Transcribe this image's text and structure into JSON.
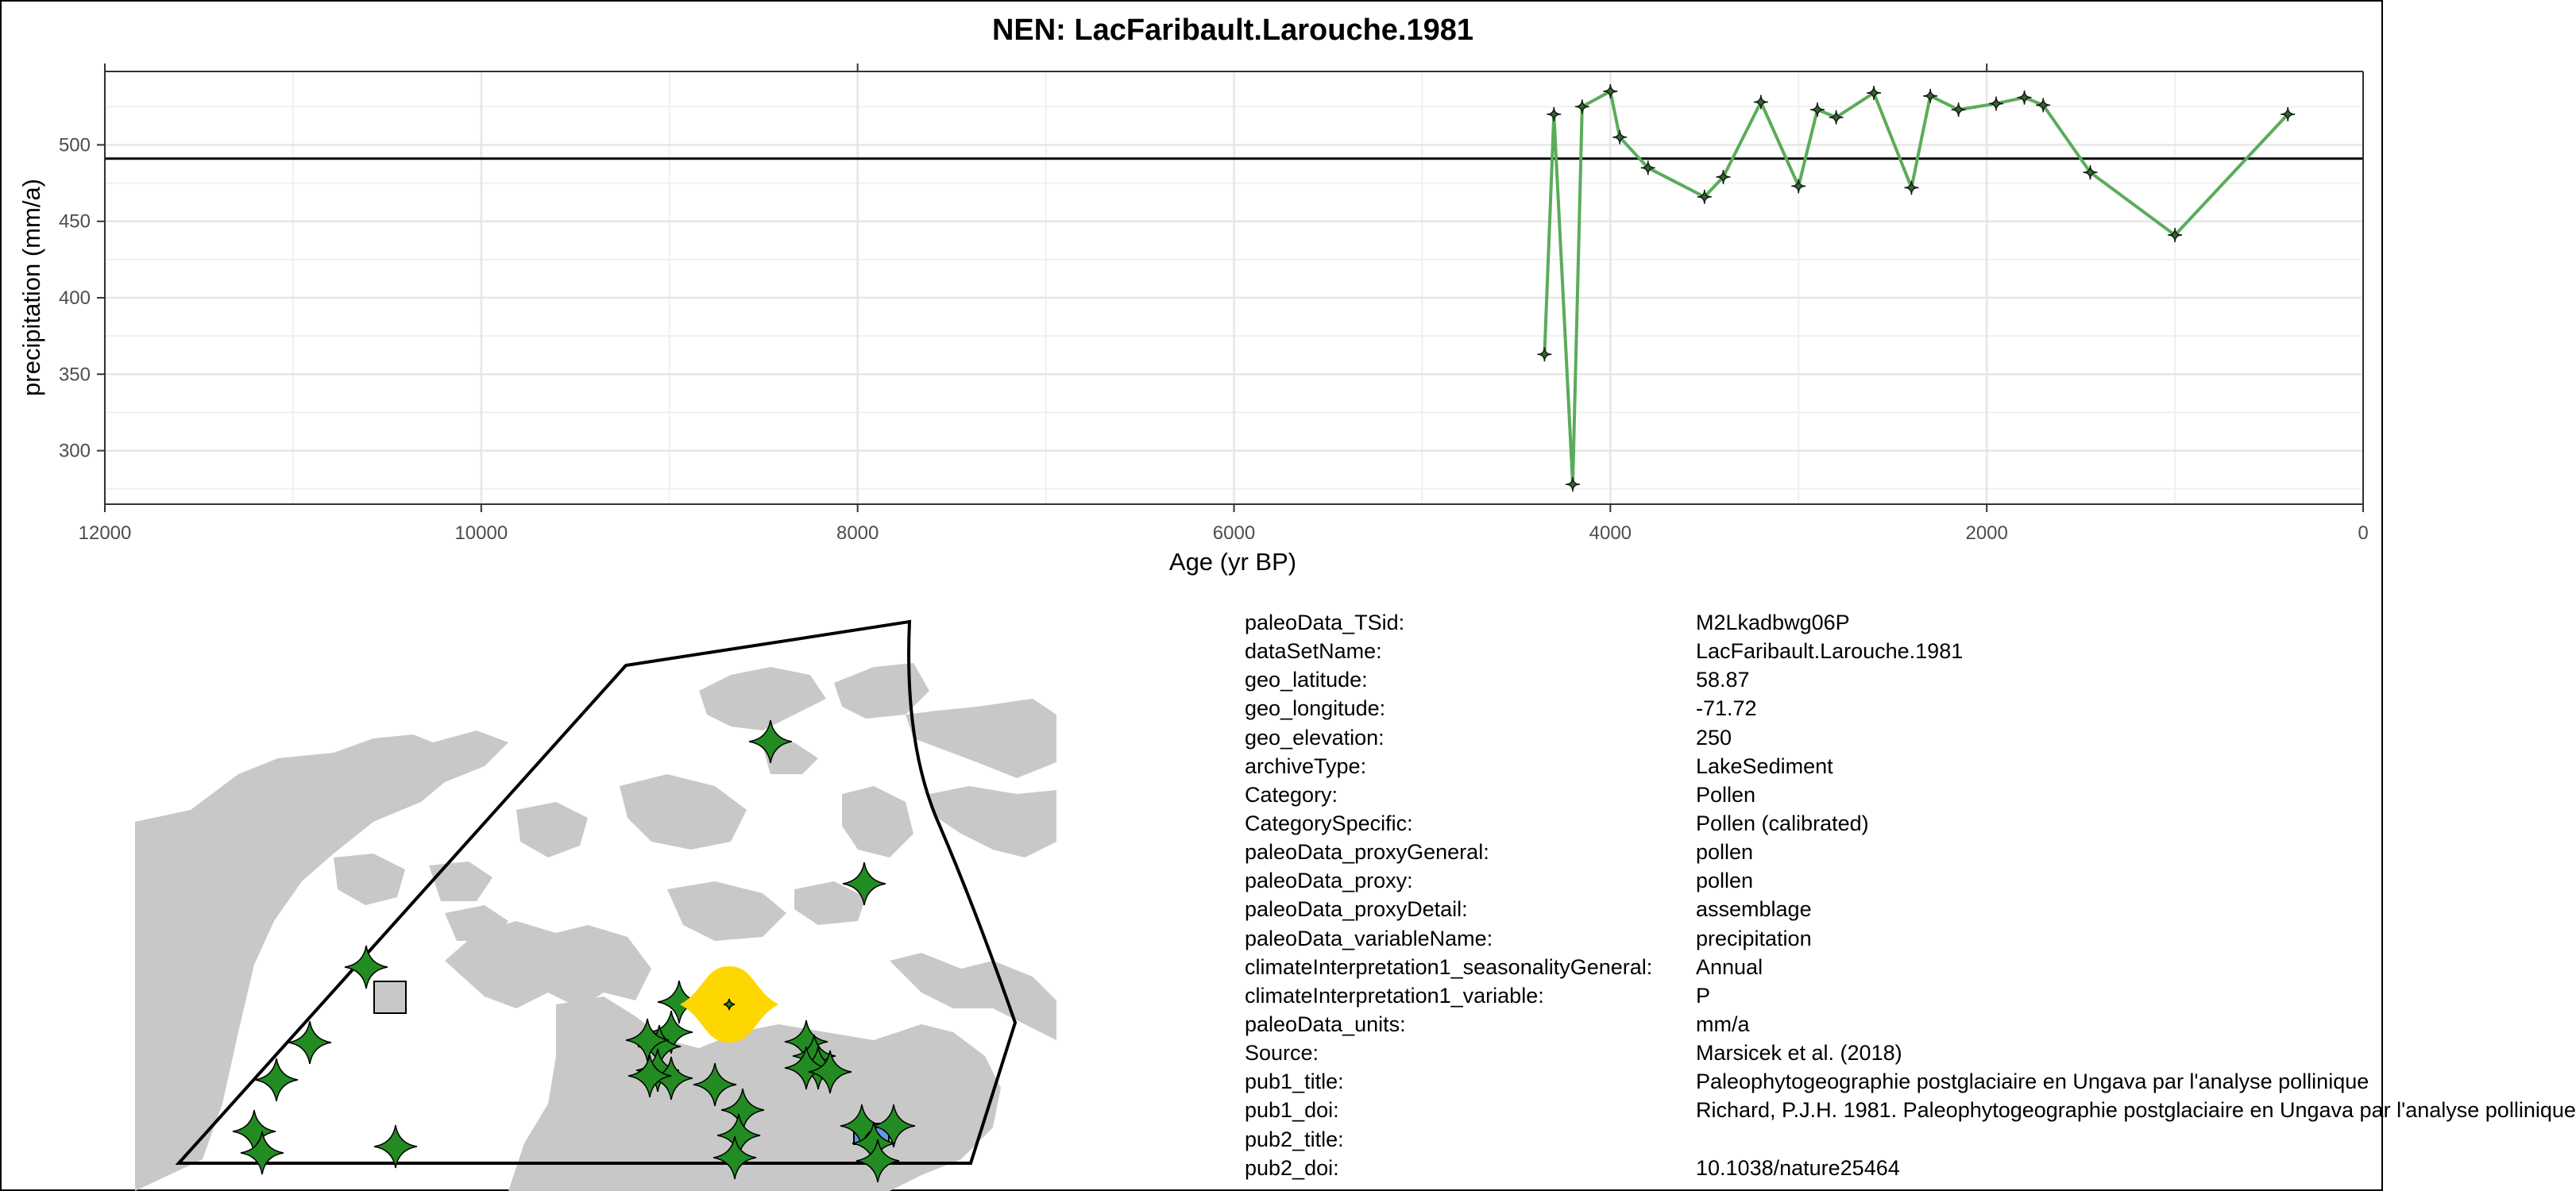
{
  "chart_data": {
    "type": "line",
    "title": "NEN: LacFaribault.Larouche.1981",
    "xlabel": "Age (yr BP)",
    "ylabel": "precipitation (mm/a)",
    "x_reversed": true,
    "xlim": [
      12000,
      0
    ],
    "ylim": [
      265,
      548
    ],
    "x_ticks": [
      12000,
      10000,
      8000,
      6000,
      4000,
      2000,
      0
    ],
    "y_ticks": [
      300,
      350,
      400,
      450,
      500
    ],
    "grid": true,
    "reference_line_y": 491,
    "series": [
      {
        "color": "#5aac5a",
        "marker": "plus",
        "points": [
          [
            4350,
            363
          ],
          [
            4300,
            520
          ],
          [
            4200,
            278
          ],
          [
            4150,
            525
          ],
          [
            4000,
            535
          ],
          [
            3950,
            505
          ],
          [
            3800,
            485
          ],
          [
            3500,
            466
          ],
          [
            3400,
            479
          ],
          [
            3200,
            528
          ],
          [
            3000,
            473
          ],
          [
            2900,
            523
          ],
          [
            2800,
            518
          ],
          [
            2600,
            534
          ],
          [
            2400,
            472
          ],
          [
            2300,
            532
          ],
          [
            2150,
            523
          ],
          [
            1950,
            527
          ],
          [
            1800,
            531
          ],
          [
            1700,
            526
          ],
          [
            1450,
            482
          ],
          [
            1000,
            441
          ],
          [
            400,
            520
          ]
        ]
      }
    ]
  },
  "map": {
    "land_color": "#c8c8c8",
    "region_outline_color": "#000000",
    "site_marker_color": "#228b22",
    "highlight_marker_color": "#ffd700",
    "square_marker_color": "#c8c8c8",
    "blue_marker_color": "#6495ed"
  },
  "metadata": [
    {
      "key": "paleoData_TSid:",
      "value": "M2Lkadbwg06P"
    },
    {
      "key": "dataSetName:",
      "value": "LacFaribault.Larouche.1981"
    },
    {
      "key": "geo_latitude:",
      "value": "58.87"
    },
    {
      "key": "geo_longitude:",
      "value": "-71.72"
    },
    {
      "key": "geo_elevation:",
      "value": "250"
    },
    {
      "key": "archiveType:",
      "value": "LakeSediment"
    },
    {
      "key": "Category:",
      "value": "Pollen"
    },
    {
      "key": "CategorySpecific:",
      "value": "Pollen (calibrated)"
    },
    {
      "key": "paleoData_proxyGeneral:",
      "value": "pollen"
    },
    {
      "key": "paleoData_proxy:",
      "value": "pollen"
    },
    {
      "key": "paleoData_proxyDetail:",
      "value": "assemblage"
    },
    {
      "key": "paleoData_variableName:",
      "value": "precipitation"
    },
    {
      "key": "climateInterpretation1_seasonalityGeneral:",
      "value": "Annual"
    },
    {
      "key": "climateInterpretation1_variable:",
      "value": "P"
    },
    {
      "key": "paleoData_units:",
      "value": "mm/a"
    },
    {
      "key": "Source:",
      "value": "Marsicek et al. (2018)"
    },
    {
      "key": "pub1_title:",
      "value": "Paleophytogeographie postglaciaire en Ungava par l'analyse pollinique"
    },
    {
      "key": "pub1_doi:",
      "value": "Richard, P.J.H. 1981. Paleophytogeographie postglaciaire en Ungava par l'analyse pollinique"
    },
    {
      "key": "pub2_title:",
      "value": ""
    },
    {
      "key": "pub2_doi:",
      "value": "10.1038/nature25464"
    }
  ]
}
